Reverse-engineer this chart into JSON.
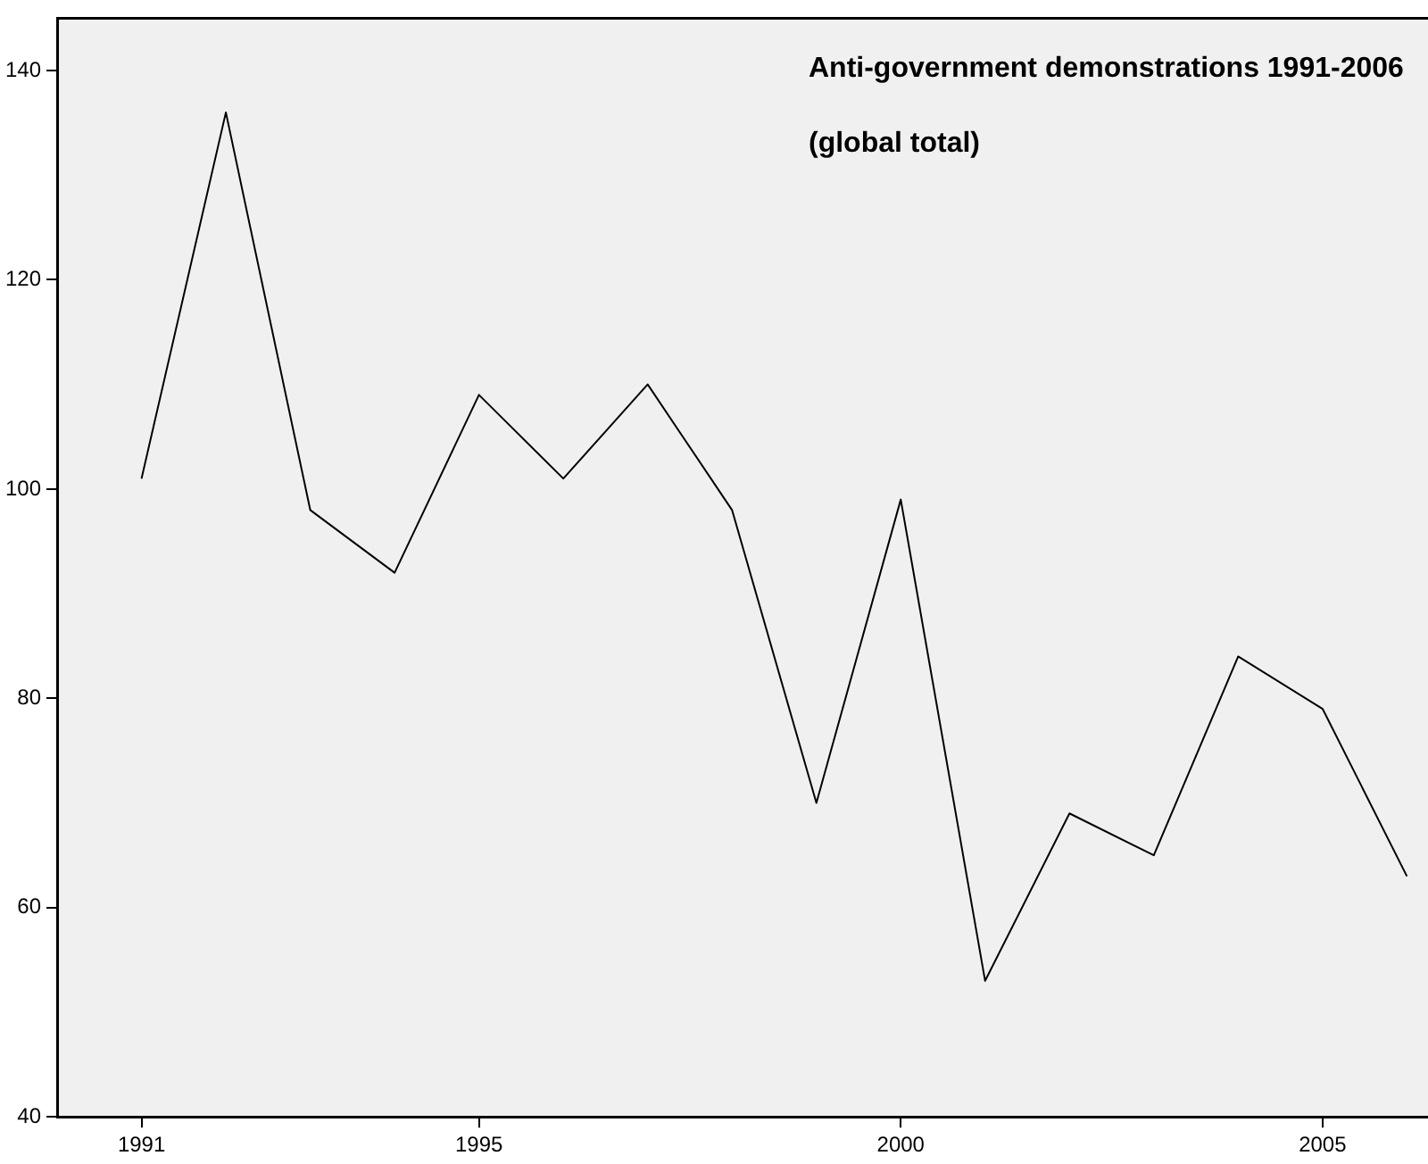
{
  "chart_data": {
    "type": "line",
    "title": "Anti-government demonstrations 1991-2006 (global total)",
    "x": [
      1991,
      1992,
      1993,
      1994,
      1995,
      1996,
      1997,
      1998,
      1999,
      2000,
      2001,
      2002,
      2003,
      2004,
      2005,
      2006
    ],
    "series": [
      {
        "color": "#000000",
        "values": [
          101,
          136,
          98,
          92,
          109,
          101,
          110,
          98,
          70,
          99,
          53,
          69,
          65,
          84,
          79,
          63
        ]
      }
    ],
    "xlim": [
      1990,
      2006.25
    ],
    "ylim": [
      40,
      145
    ],
    "xticks": [
      1991,
      1995,
      2000,
      2005
    ],
    "yticks": [
      40,
      60,
      80,
      100,
      120,
      140
    ],
    "grid": false,
    "legend": false,
    "marker": "none",
    "line_style": "solid"
  }
}
